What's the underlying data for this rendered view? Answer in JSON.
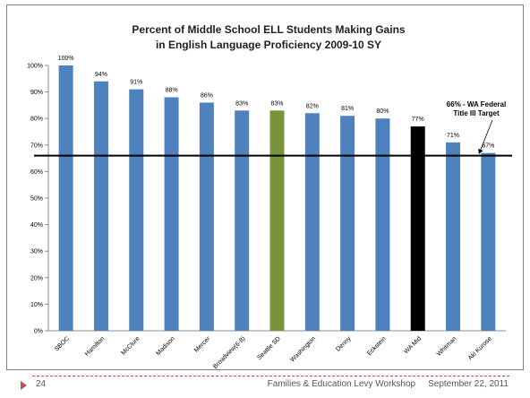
{
  "chart_data": {
    "type": "bar",
    "title": [
      "Percent of Middle School ELL Students Making Gains",
      "in English Language Proficiency 2009-10 SY"
    ],
    "categories": [
      "SBOC",
      "Hamilton",
      "McClure",
      "Madison",
      "Mercer",
      "Broadview(6-8)",
      "Seattle SD",
      "Washington",
      "Denny",
      "Eckstein",
      "WA Mid",
      "Whitman",
      "Aki Kurose"
    ],
    "values": [
      100,
      94,
      91,
      88,
      86,
      83,
      83,
      82,
      81,
      80,
      77,
      71,
      67
    ],
    "data_labels": [
      "100%",
      "94%",
      "91%",
      "88%",
      "86%",
      "83%",
      "83%",
      "82%",
      "81%",
      "80%",
      "77%",
      "71%",
      "67%"
    ],
    "bar_colors": [
      "#4f81bd",
      "#4f81bd",
      "#4f81bd",
      "#4f81bd",
      "#4f81bd",
      "#4f81bd",
      "#77933c",
      "#4f81bd",
      "#4f81bd",
      "#4f81bd",
      "#000000",
      "#4f81bd",
      "#4f81bd"
    ],
    "ylim": [
      0,
      100
    ],
    "yticks": [
      0,
      10,
      20,
      30,
      40,
      50,
      60,
      70,
      80,
      90,
      100
    ],
    "ytick_labels": [
      "0%",
      "10%",
      "20%",
      "30%",
      "40%",
      "50%",
      "60%",
      "70%",
      "80%",
      "90%",
      "100%"
    ],
    "grid": false,
    "target": {
      "value": 66,
      "label": [
        "66% - WA Federal",
        "Title III Target"
      ]
    }
  },
  "footer": {
    "page_number": "24",
    "workshop": "Families & Education Levy Workshop",
    "date": "September 22, 2011"
  }
}
